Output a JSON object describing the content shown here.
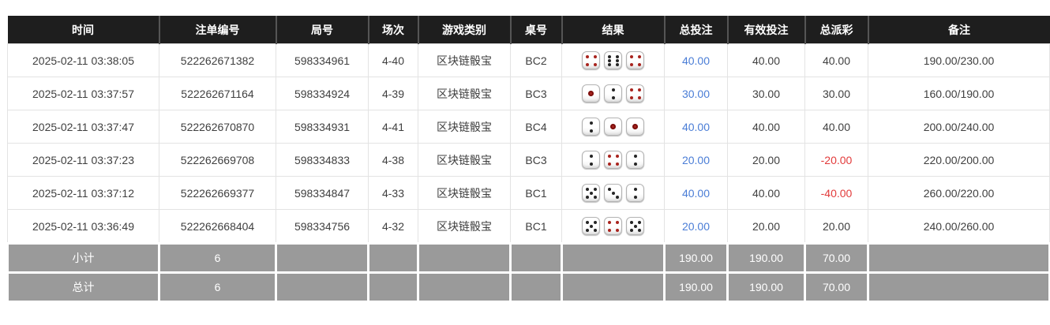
{
  "table": {
    "columns": [
      {
        "key": "time",
        "label": "时间"
      },
      {
        "key": "bet_no",
        "label": "注单编号"
      },
      {
        "key": "round_no",
        "label": "局号"
      },
      {
        "key": "session",
        "label": "场次"
      },
      {
        "key": "game",
        "label": "游戏类别"
      },
      {
        "key": "table_no",
        "label": "桌号"
      },
      {
        "key": "result",
        "label": "结果"
      },
      {
        "key": "total_bet",
        "label": "总投注"
      },
      {
        "key": "valid_bet",
        "label": "有效投注"
      },
      {
        "key": "payout",
        "label": "总派彩"
      },
      {
        "key": "remark",
        "label": "备注"
      }
    ],
    "rows": [
      {
        "time": "2025-02-11 03:38:05",
        "bet_no": "522262671382",
        "round_no": "598334961",
        "session": "4-40",
        "game": "区块链骰宝",
        "table_no": "BC2",
        "dice": [
          {
            "value": 4,
            "color": "red"
          },
          {
            "value": 6,
            "color": "black"
          },
          {
            "value": 4,
            "color": "red"
          }
        ],
        "total_bet": "40.00",
        "valid_bet": "40.00",
        "payout": "40.00",
        "remark": "190.00/230.00"
      },
      {
        "time": "2025-02-11 03:37:57",
        "bet_no": "522262671164",
        "round_no": "598334924",
        "session": "4-39",
        "game": "区块链骰宝",
        "table_no": "BC3",
        "dice": [
          {
            "value": 1,
            "color": "red"
          },
          {
            "value": 2,
            "color": "black"
          },
          {
            "value": 4,
            "color": "red"
          }
        ],
        "total_bet": "30.00",
        "valid_bet": "30.00",
        "payout": "30.00",
        "remark": "160.00/190.00"
      },
      {
        "time": "2025-02-11 03:37:47",
        "bet_no": "522262670870",
        "round_no": "598334931",
        "session": "4-41",
        "game": "区块链骰宝",
        "table_no": "BC4",
        "dice": [
          {
            "value": 2,
            "color": "black"
          },
          {
            "value": 1,
            "color": "red"
          },
          {
            "value": 1,
            "color": "red"
          }
        ],
        "total_bet": "40.00",
        "valid_bet": "40.00",
        "payout": "40.00",
        "remark": "200.00/240.00"
      },
      {
        "time": "2025-02-11 03:37:23",
        "bet_no": "522262669708",
        "round_no": "598334833",
        "session": "4-38",
        "game": "区块链骰宝",
        "table_no": "BC3",
        "dice": [
          {
            "value": 2,
            "color": "black"
          },
          {
            "value": 4,
            "color": "red"
          },
          {
            "value": 2,
            "color": "black"
          }
        ],
        "total_bet": "20.00",
        "valid_bet": "20.00",
        "payout": "-20.00",
        "remark": "220.00/200.00"
      },
      {
        "time": "2025-02-11 03:37:12",
        "bet_no": "522262669377",
        "round_no": "598334847",
        "session": "4-33",
        "game": "区块链骰宝",
        "table_no": "BC1",
        "dice": [
          {
            "value": 5,
            "color": "black"
          },
          {
            "value": 3,
            "color": "black"
          },
          {
            "value": 2,
            "color": "black"
          }
        ],
        "total_bet": "40.00",
        "valid_bet": "40.00",
        "payout": "-40.00",
        "remark": "260.00/220.00"
      },
      {
        "time": "2025-02-11 03:36:49",
        "bet_no": "522262668404",
        "round_no": "598334756",
        "session": "4-32",
        "game": "区块链骰宝",
        "table_no": "BC1",
        "dice": [
          {
            "value": 5,
            "color": "black"
          },
          {
            "value": 4,
            "color": "red"
          },
          {
            "value": 5,
            "color": "black"
          }
        ],
        "total_bet": "20.00",
        "valid_bet": "20.00",
        "payout": "20.00",
        "remark": "240.00/260.00"
      }
    ],
    "summary_rows": [
      {
        "label": "小计",
        "count": "6",
        "total_bet": "190.00",
        "valid_bet": "190.00",
        "payout": "70.00"
      },
      {
        "label": "总计",
        "count": "6",
        "total_bet": "190.00",
        "valid_bet": "190.00",
        "payout": "70.00"
      }
    ]
  },
  "colors": {
    "header_bg": "#1e1e1e",
    "summary_bg": "#9a9a9a",
    "bet_amount_blue": "#4a7dd6",
    "negative_red": "#e23b3b",
    "pip_red": "#a8231d",
    "pip_black": "#252525"
  }
}
